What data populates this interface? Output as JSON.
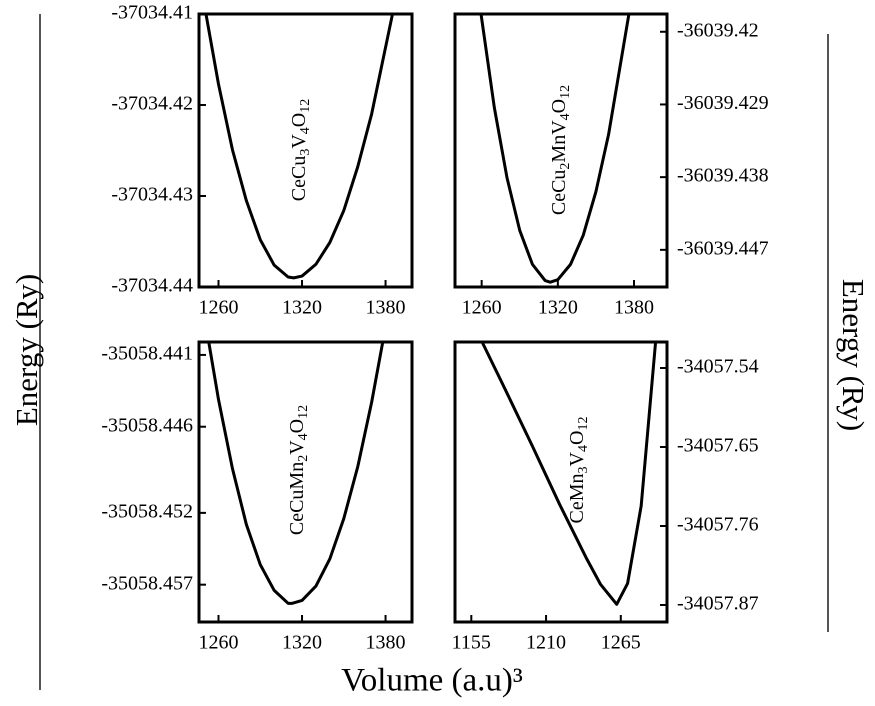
{
  "chart_data": [
    {
      "type": "line",
      "annotation": "CeCu3V4O12",
      "color": "#000000",
      "ytick_side": "left",
      "x": [
        1251,
        1260,
        1270,
        1280,
        1290,
        1300,
        1310,
        1314,
        1320,
        1330,
        1340,
        1350,
        1360,
        1370,
        1385
      ],
      "values": [
        -37034.41,
        -37034.4177,
        -37034.4249,
        -37034.4305,
        -37034.4348,
        -37034.4376,
        -37034.4389,
        -37034.439,
        -37034.4388,
        -37034.4375,
        -37034.4351,
        -37034.4316,
        -37034.4268,
        -37034.421,
        -37034.41
      ],
      "xlim": [
        1246,
        1399
      ],
      "ylim": [
        -37034.44,
        -37034.41
      ],
      "xticks": [
        1260,
        1320,
        1380
      ],
      "yticks": [
        -37034.44,
        -37034.43,
        -37034.42,
        -37034.41
      ]
    },
    {
      "type": "line",
      "annotation": "CeCu2MnV4O12",
      "color": "#000000",
      "ytick_side": "right",
      "x": [
        1259.5,
        1270,
        1280,
        1290,
        1300,
        1310,
        1314,
        1320,
        1330,
        1340,
        1350,
        1360,
        1376
      ],
      "values": [
        -36039.4178,
        -36039.4294,
        -36039.4381,
        -36039.4446,
        -36039.4488,
        -36039.4508,
        -36039.451,
        -36039.4507,
        -36039.4488,
        -36039.4452,
        -36039.4398,
        -36039.4327,
        -36039.4178
      ],
      "xlim": [
        1239,
        1406
      ],
      "ylim": [
        -36039.4516,
        -36039.4178
      ],
      "xticks": [
        1260,
        1320,
        1380
      ],
      "yticks": [
        -36039.447,
        -36039.438,
        -36039.429,
        -36039.42
      ]
    },
    {
      "type": "line",
      "annotation": "CeCuMn2V4O12",
      "color": "#000000",
      "ytick_side": "left",
      "x": [
        1253,
        1260,
        1270,
        1280,
        1290,
        1300,
        1310,
        1313,
        1320,
        1330,
        1340,
        1350,
        1360,
        1370,
        1378
      ],
      "values": [
        -35058.4401,
        -35058.4441,
        -35058.4489,
        -35058.4528,
        -35058.4556,
        -35058.4574,
        -35058.4583,
        -35058.4583,
        -35058.4581,
        -35058.4571,
        -35058.4552,
        -35058.4524,
        -35058.4488,
        -35058.4443,
        -35058.4401
      ],
      "xlim": [
        1246,
        1399
      ],
      "ylim": [
        -35058.4596,
        -35058.4401
      ],
      "xticks": [
        1260,
        1320,
        1380
      ],
      "yticks": [
        -35058.457,
        -35058.452,
        -35058.446,
        -35058.441
      ]
    },
    {
      "type": "line",
      "annotation": "CeMn3V4O12",
      "color": "#000000",
      "ytick_side": "right",
      "x": [
        1163,
        1180,
        1200,
        1220,
        1240,
        1250,
        1262,
        1270,
        1280,
        1290.6
      ],
      "values": [
        -34057.504,
        -34057.57,
        -34057.649,
        -34057.73,
        -34057.806,
        -34057.841,
        -34057.869,
        -34057.84,
        -34057.732,
        -34057.504
      ],
      "xlim": [
        1143,
        1299
      ],
      "ylim": [
        -34057.8937,
        -34057.5038
      ],
      "xticks": [
        1155,
        1210,
        1265
      ],
      "yticks": [
        -34057.87,
        -34057.76,
        -34057.65,
        -34057.54
      ]
    }
  ],
  "ylabel": "Energy (Ry)",
  "y2label": "Energy (Ry)",
  "xlabel": "Volume (a.u)³"
}
